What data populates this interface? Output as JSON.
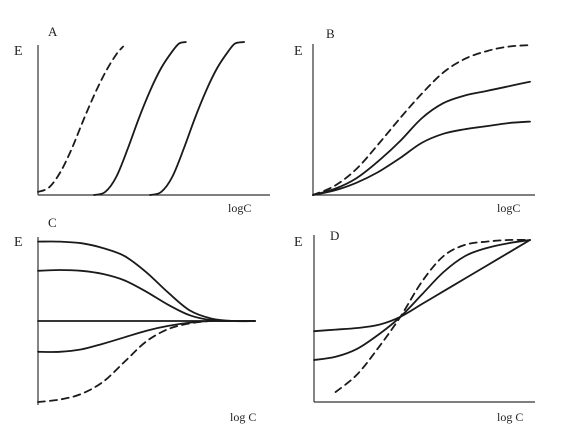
{
  "chart_data": [
    {
      "type": "line",
      "panel_label": "A",
      "ylabel": "E",
      "xlabel": "logC",
      "ylim": [
        0,
        1
      ],
      "xlim": [
        0,
        1
      ],
      "series": [
        {
          "style": "dashed",
          "x": [
            0.0,
            0.05,
            0.1,
            0.15,
            0.2,
            0.25,
            0.3,
            0.35,
            0.38
          ],
          "y": [
            0.02,
            0.05,
            0.15,
            0.3,
            0.48,
            0.65,
            0.8,
            0.92,
            0.97
          ]
        },
        {
          "style": "solid",
          "x": [
            0.25,
            0.3,
            0.35,
            0.4,
            0.45,
            0.5,
            0.55,
            0.6,
            0.63,
            0.66
          ],
          "y": [
            0.0,
            0.02,
            0.12,
            0.3,
            0.5,
            0.68,
            0.83,
            0.94,
            0.99,
            1.0
          ]
        },
        {
          "style": "solid",
          "x": [
            0.5,
            0.55,
            0.6,
            0.65,
            0.7,
            0.75,
            0.8,
            0.85,
            0.88,
            0.92
          ],
          "y": [
            0.0,
            0.02,
            0.12,
            0.3,
            0.5,
            0.68,
            0.83,
            0.94,
            0.99,
            1.0
          ]
        }
      ]
    },
    {
      "type": "line",
      "panel_label": "B",
      "ylabel": "E",
      "xlabel": "logC",
      "ylim": [
        0,
        1
      ],
      "xlim": [
        0,
        1
      ],
      "series": [
        {
          "style": "dashed",
          "x": [
            0.0,
            0.1,
            0.2,
            0.3,
            0.4,
            0.5,
            0.6,
            0.7,
            0.8,
            0.9,
            1.0
          ],
          "y": [
            0.0,
            0.06,
            0.17,
            0.33,
            0.5,
            0.66,
            0.8,
            0.89,
            0.94,
            0.97,
            0.98
          ]
        },
        {
          "style": "solid",
          "x": [
            0.0,
            0.1,
            0.2,
            0.3,
            0.4,
            0.5,
            0.6,
            0.7,
            0.8,
            0.9,
            1.0
          ],
          "y": [
            0.0,
            0.04,
            0.11,
            0.22,
            0.35,
            0.5,
            0.6,
            0.65,
            0.68,
            0.71,
            0.74
          ]
        },
        {
          "style": "solid",
          "x": [
            0.0,
            0.1,
            0.2,
            0.3,
            0.4,
            0.5,
            0.6,
            0.7,
            0.8,
            0.9,
            1.0
          ],
          "y": [
            0.0,
            0.03,
            0.08,
            0.15,
            0.24,
            0.34,
            0.4,
            0.43,
            0.45,
            0.47,
            0.48
          ]
        }
      ]
    },
    {
      "type": "line",
      "panel_label": "C",
      "ylabel": "E",
      "xlabel": "log C",
      "ylim": [
        -1,
        1
      ],
      "xlim": [
        0,
        1
      ],
      "series": [
        {
          "style": "solid",
          "x": [
            0.0,
            0.1,
            0.2,
            0.3,
            0.4,
            0.5,
            0.6,
            0.7,
            0.8,
            0.9,
            1.0
          ],
          "y": [
            0.98,
            0.98,
            0.96,
            0.9,
            0.8,
            0.6,
            0.35,
            0.13,
            0.03,
            0.0,
            0.0
          ]
        },
        {
          "style": "solid",
          "x": [
            0.0,
            0.1,
            0.2,
            0.3,
            0.4,
            0.5,
            0.6,
            0.7,
            0.8,
            0.9,
            1.0
          ],
          "y": [
            0.62,
            0.63,
            0.62,
            0.58,
            0.5,
            0.36,
            0.2,
            0.07,
            0.01,
            0.0,
            0.0
          ]
        },
        {
          "style": "solid",
          "x": [
            0.0,
            0.5,
            1.0
          ],
          "y": [
            0.0,
            0.0,
            0.0
          ]
        },
        {
          "style": "solid",
          "x": [
            0.0,
            0.1,
            0.2,
            0.3,
            0.4,
            0.5,
            0.6,
            0.7,
            0.8,
            0.9,
            1.0
          ],
          "y": [
            -0.38,
            -0.38,
            -0.35,
            -0.28,
            -0.2,
            -0.12,
            -0.06,
            -0.02,
            0.0,
            0.0,
            0.0
          ]
        },
        {
          "style": "dashed",
          "x": [
            0.0,
            0.1,
            0.2,
            0.3,
            0.4,
            0.5,
            0.6,
            0.7,
            0.8,
            0.9,
            1.0
          ],
          "y": [
            -1.0,
            -0.97,
            -0.9,
            -0.75,
            -0.5,
            -0.25,
            -0.1,
            -0.03,
            0.0,
            0.0,
            0.0
          ]
        }
      ]
    },
    {
      "type": "line",
      "panel_label": "D",
      "ylabel": "E",
      "xlabel": "log C",
      "ylim": [
        0,
        1
      ],
      "xlim": [
        0,
        1
      ],
      "series": [
        {
          "style": "solid",
          "x": [
            0.0,
            0.1,
            0.2,
            0.3,
            0.4,
            0.5,
            0.6,
            0.7,
            0.8,
            0.9,
            1.0
          ],
          "y": [
            0.43,
            0.44,
            0.45,
            0.47,
            0.52,
            0.6,
            0.68,
            0.76,
            0.84,
            0.92,
            1.0
          ]
        },
        {
          "style": "solid",
          "x": [
            0.0,
            0.1,
            0.2,
            0.3,
            0.4,
            0.5,
            0.6,
            0.7,
            0.8,
            0.9,
            1.0
          ],
          "y": [
            0.25,
            0.27,
            0.32,
            0.41,
            0.52,
            0.66,
            0.8,
            0.9,
            0.95,
            0.98,
            1.0
          ]
        },
        {
          "style": "dashed",
          "x": [
            0.1,
            0.2,
            0.3,
            0.4,
            0.5,
            0.6,
            0.7,
            0.8,
            0.9,
            1.0
          ],
          "y": [
            0.05,
            0.16,
            0.33,
            0.52,
            0.74,
            0.9,
            0.97,
            0.99,
            1.0,
            1.0
          ]
        }
      ]
    }
  ]
}
